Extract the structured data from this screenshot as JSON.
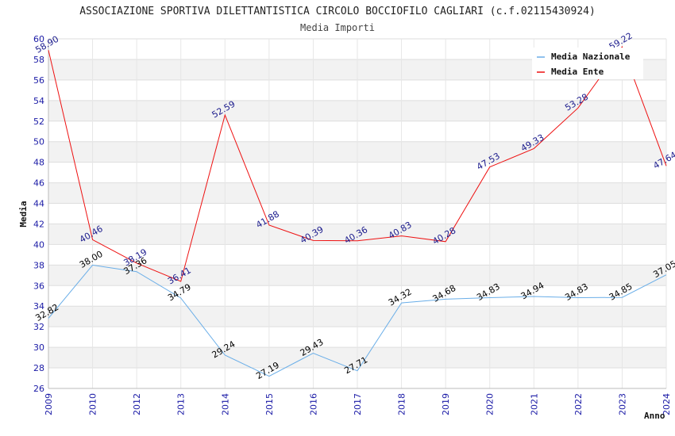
{
  "chart_data": {
    "type": "line",
    "title": "ASSOCIAZIONE SPORTIVA DILETTANTISTICA CIRCOLO BOCCIOFILO CAGLIARI (c.f.02115430924)",
    "subtitle": "Media Importi",
    "xlabel": "Anno",
    "ylabel": "Media",
    "ylim": [
      26,
      60
    ],
    "ystep": 2,
    "categories": [
      "2009",
      "2010",
      "2012",
      "2013",
      "2014",
      "2015",
      "2016",
      "2017",
      "2018",
      "2019",
      "2020",
      "2021",
      "2022",
      "2023",
      "2024"
    ],
    "series": [
      {
        "name": "Media Nazionale",
        "color": "#6aaee8",
        "labelColor": "#000000",
        "values": [
          32.82,
          38.0,
          37.36,
          34.79,
          29.24,
          27.19,
          29.43,
          27.71,
          34.32,
          34.68,
          34.83,
          34.94,
          34.83,
          34.85,
          37.05
        ],
        "labels": [
          "32.82",
          "38.00",
          "37.36",
          "34.79",
          "29.24",
          "27.19",
          "29.43",
          "27.71",
          "34.32",
          "34.68",
          "34.83",
          "34.94",
          "34.83",
          "34.85",
          "37.05"
        ]
      },
      {
        "name": "Media Ente",
        "color": "#ee1111",
        "labelColor": "#1a1a8c",
        "values": [
          58.9,
          40.46,
          38.19,
          36.41,
          52.59,
          41.88,
          40.39,
          40.36,
          40.83,
          40.28,
          47.53,
          49.33,
          53.28,
          59.22,
          47.64
        ],
        "labels": [
          "58.90",
          "40.46",
          "38.19",
          "36.41",
          "52.59",
          "41.88",
          "40.39",
          "40.36",
          "40.83",
          "40.28",
          "47.53",
          "49.33",
          "53.28",
          "59.22",
          "47.64"
        ]
      }
    ],
    "grid": true,
    "legend": "top-right"
  }
}
